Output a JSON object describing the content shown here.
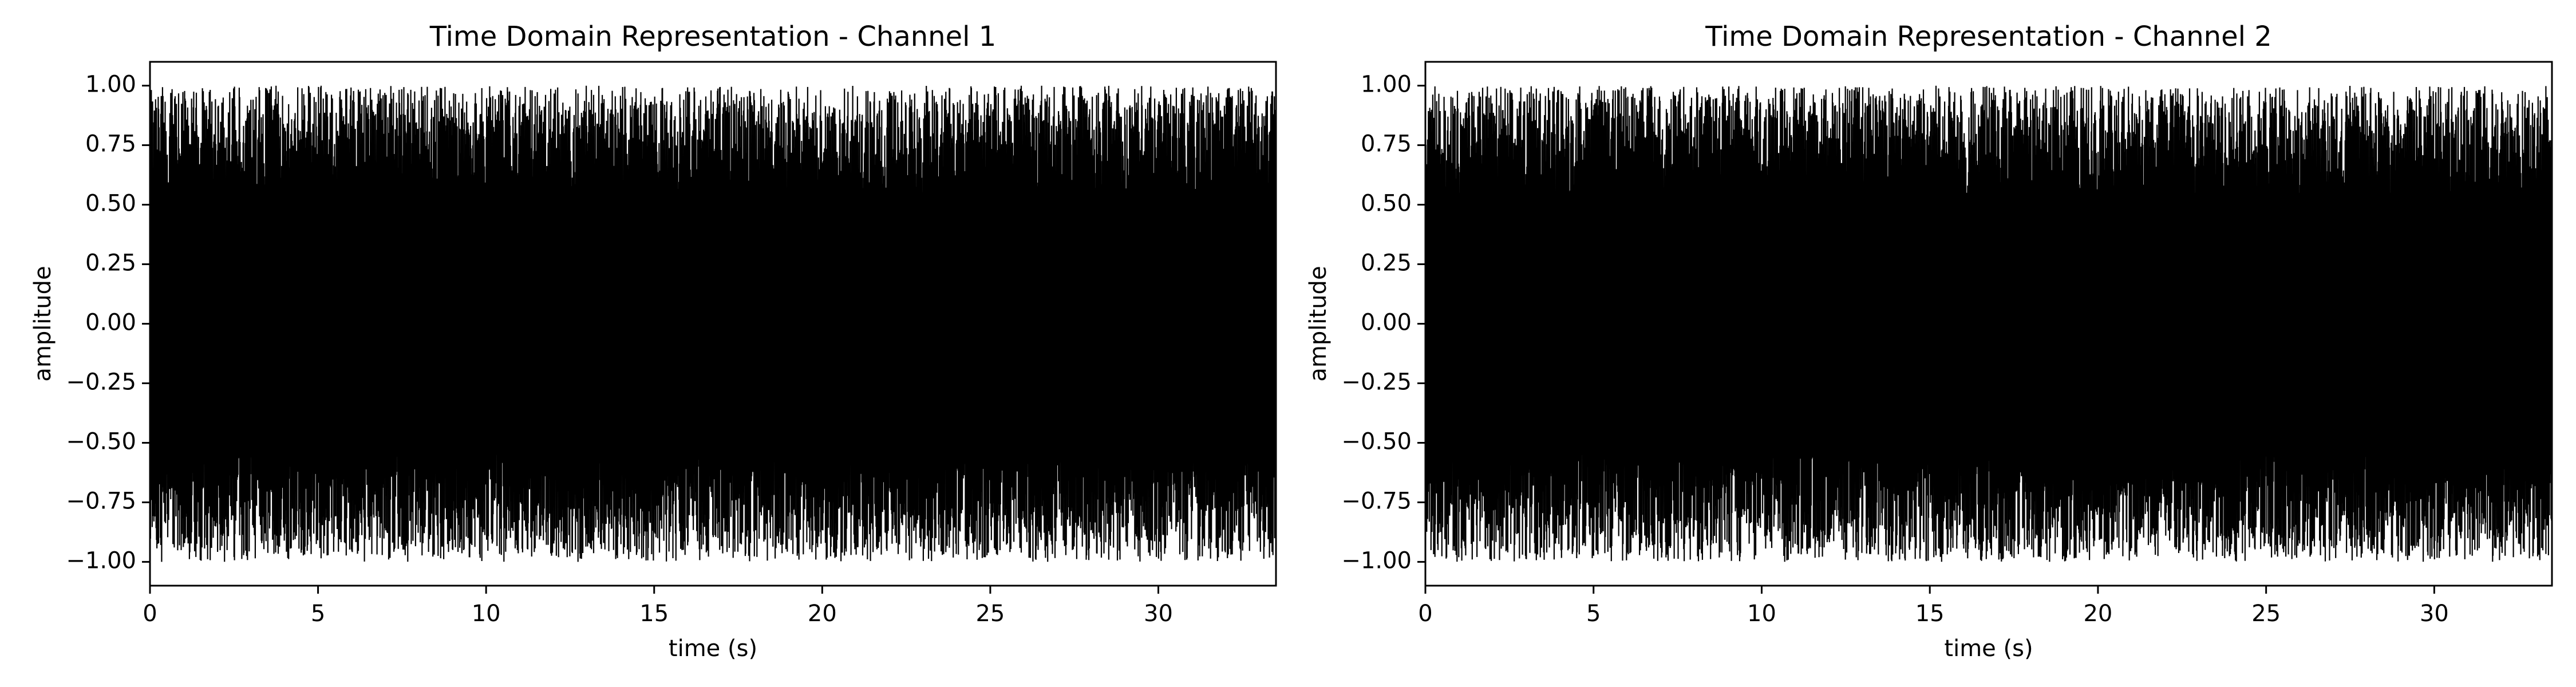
{
  "chart_data": [
    {
      "type": "line",
      "title": "Time Domain Representation - Channel 1",
      "xlabel": "time (s)",
      "ylabel": "amplitude",
      "xlim": [
        0,
        33.5
      ],
      "ylim": [
        -1.1,
        1.1
      ],
      "xticks": [
        0,
        5,
        10,
        15,
        20,
        25,
        30
      ],
      "xtick_labels": [
        "0",
        "5",
        "10",
        "15",
        "20",
        "25",
        "30"
      ],
      "yticks": [
        1.0,
        0.75,
        0.5,
        0.25,
        0.0,
        -0.25,
        -0.5,
        -0.75,
        -1.0
      ],
      "ytick_labels": [
        "1.00",
        "0.75",
        "0.50",
        "0.25",
        "0.00",
        "−0.25",
        "−0.50",
        "−0.75",
        "−1.00"
      ],
      "grid": false,
      "series": [
        {
          "name": "Channel 1",
          "color": "#000000",
          "description": "dense audio waveform, amplitude range -1.0 to 1.0",
          "x_range": [
            0,
            33.5
          ],
          "y_range": [
            -1.0,
            1.0
          ]
        }
      ]
    },
    {
      "type": "line",
      "title": "Time Domain Representation - Channel 2",
      "xlabel": "time (s)",
      "ylabel": "amplitude",
      "xlim": [
        0,
        33.5
      ],
      "ylim": [
        -1.1,
        1.1
      ],
      "xticks": [
        0,
        5,
        10,
        15,
        20,
        25,
        30
      ],
      "xtick_labels": [
        "0",
        "5",
        "10",
        "15",
        "20",
        "25",
        "30"
      ],
      "yticks": [
        1.0,
        0.75,
        0.5,
        0.25,
        0.0,
        -0.25,
        -0.5,
        -0.75,
        -1.0
      ],
      "ytick_labels": [
        "1.00",
        "0.75",
        "0.50",
        "0.25",
        "0.00",
        "−0.25",
        "−0.50",
        "−0.75",
        "−1.00"
      ],
      "grid": false,
      "series": [
        {
          "name": "Channel 2",
          "color": "#000000",
          "description": "dense audio waveform, amplitude range -1.0 to 1.0",
          "x_range": [
            0,
            33.5
          ],
          "y_range": [
            -1.0,
            1.0
          ]
        }
      ]
    }
  ]
}
